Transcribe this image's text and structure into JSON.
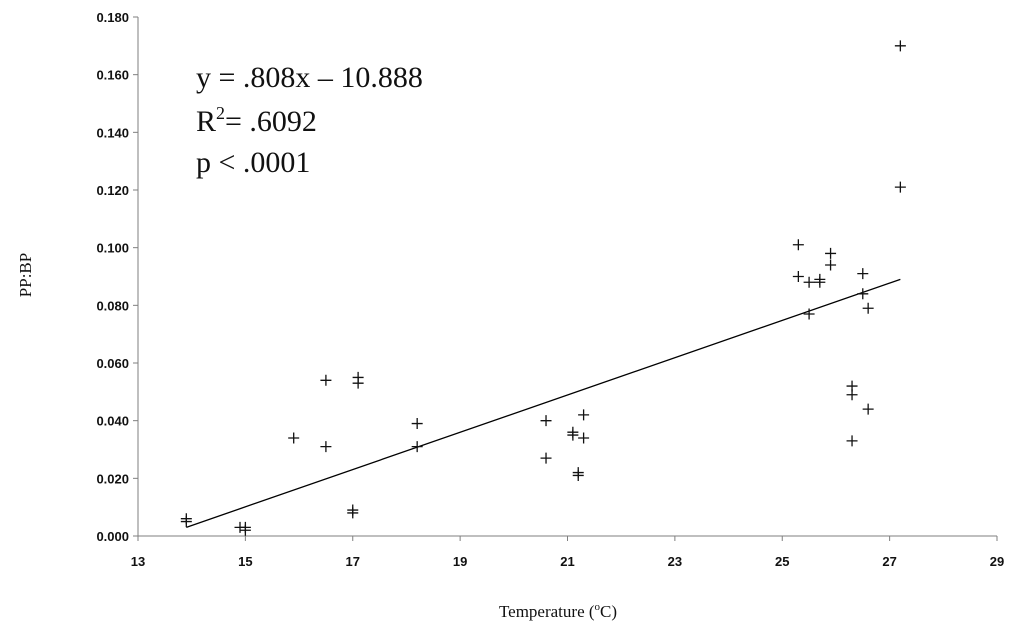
{
  "chart_data": {
    "type": "scatter",
    "title": "",
    "xlabel": "Temperature (",
    "xlabel_degree": "o",
    "xlabel_unit": "C)",
    "ylabel": "PP:BP",
    "xlim": [
      13,
      29
    ],
    "ylim": [
      0,
      0.18
    ],
    "x_ticks": [
      "13",
      "15",
      "17",
      "19",
      "21",
      "23",
      "25",
      "27",
      "29"
    ],
    "y_ticks": [
      "0.000",
      "0.020",
      "0.040",
      "0.060",
      "0.080",
      "0.100",
      "0.120",
      "0.140",
      "0.160",
      "0.180"
    ],
    "grid": false,
    "marker": "+",
    "annotations": {
      "equation": "y = .808x – 10.888",
      "r2_prefix": "R",
      "r2_sup": "2",
      "r2_value": "= .6092",
      "p_value": "p < .0001"
    },
    "trendline": {
      "x": [
        13.9,
        27.2
      ],
      "y": [
        0.003,
        0.089
      ]
    },
    "points": [
      {
        "x": 13.9,
        "y": 0.006
      },
      {
        "x": 13.9,
        "y": 0.005
      },
      {
        "x": 14.9,
        "y": 0.003
      },
      {
        "x": 15.0,
        "y": 0.002
      },
      {
        "x": 15.0,
        "y": 0.003
      },
      {
        "x": 15.9,
        "y": 0.034
      },
      {
        "x": 16.5,
        "y": 0.054
      },
      {
        "x": 16.5,
        "y": 0.031
      },
      {
        "x": 17.0,
        "y": 0.009
      },
      {
        "x": 17.0,
        "y": 0.008
      },
      {
        "x": 17.1,
        "y": 0.055
      },
      {
        "x": 17.1,
        "y": 0.053
      },
      {
        "x": 18.2,
        "y": 0.039
      },
      {
        "x": 18.2,
        "y": 0.031
      },
      {
        "x": 20.6,
        "y": 0.04
      },
      {
        "x": 20.6,
        "y": 0.027
      },
      {
        "x": 21.1,
        "y": 0.035
      },
      {
        "x": 21.1,
        "y": 0.036
      },
      {
        "x": 21.2,
        "y": 0.021
      },
      {
        "x": 21.2,
        "y": 0.022
      },
      {
        "x": 21.3,
        "y": 0.042
      },
      {
        "x": 21.3,
        "y": 0.034
      },
      {
        "x": 25.3,
        "y": 0.101
      },
      {
        "x": 25.3,
        "y": 0.09
      },
      {
        "x": 25.5,
        "y": 0.088
      },
      {
        "x": 25.5,
        "y": 0.077
      },
      {
        "x": 25.7,
        "y": 0.088
      },
      {
        "x": 25.7,
        "y": 0.089
      },
      {
        "x": 25.9,
        "y": 0.098
      },
      {
        "x": 25.9,
        "y": 0.094
      },
      {
        "x": 26.3,
        "y": 0.052
      },
      {
        "x": 26.3,
        "y": 0.049
      },
      {
        "x": 26.3,
        "y": 0.033
      },
      {
        "x": 26.5,
        "y": 0.091
      },
      {
        "x": 26.5,
        "y": 0.084
      },
      {
        "x": 26.6,
        "y": 0.079
      },
      {
        "x": 26.6,
        "y": 0.044
      },
      {
        "x": 27.2,
        "y": 0.17
      },
      {
        "x": 27.2,
        "y": 0.121
      }
    ]
  }
}
